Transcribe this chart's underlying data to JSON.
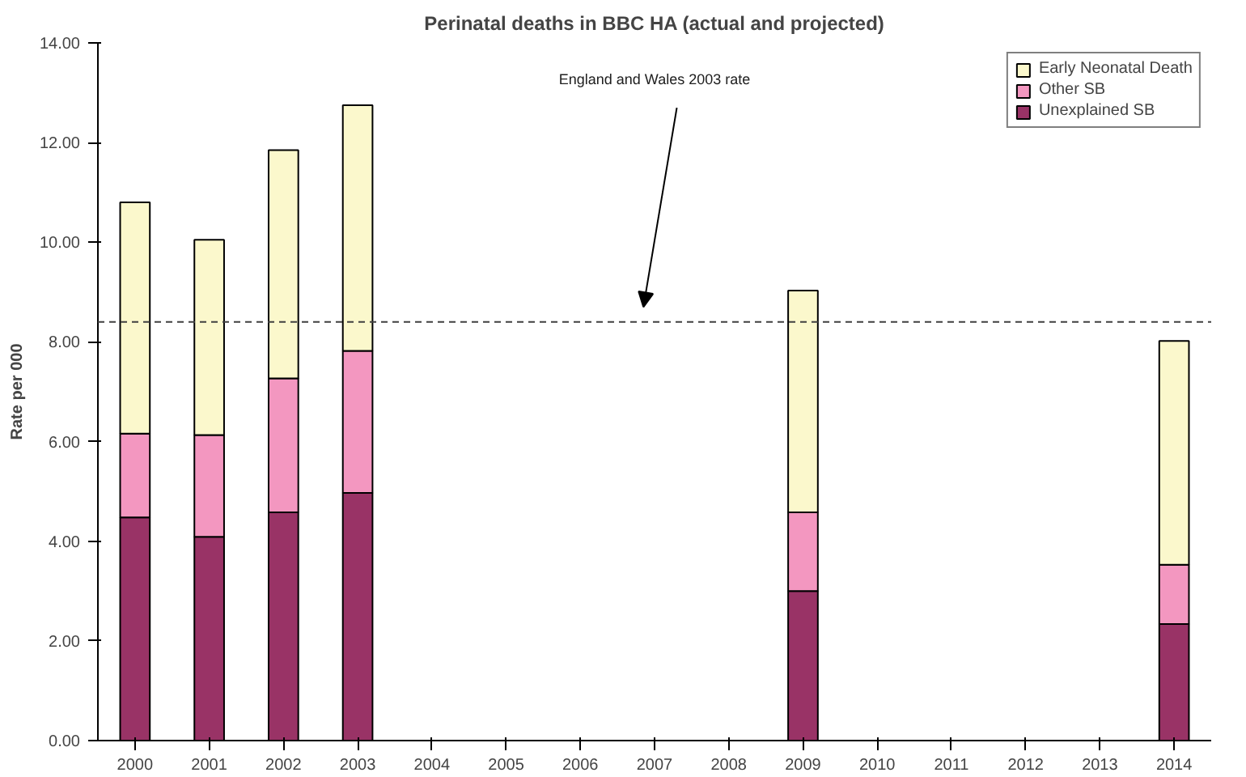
{
  "chart_data": {
    "type": "bar",
    "stacked": true,
    "title": "Perinatal deaths in BBC HA (actual and projected)",
    "ylabel": "Rate per 000",
    "categories": [
      "2000",
      "2001",
      "2002",
      "2003",
      "2004",
      "2005",
      "2006",
      "2007",
      "2008",
      "2009",
      "2010",
      "2011",
      "2012",
      "2013",
      "2014"
    ],
    "series": [
      {
        "name": "Unexplained SB",
        "color": "#993366",
        "values": [
          4.48,
          4.09,
          4.58,
          4.97,
          null,
          null,
          null,
          null,
          null,
          3.0,
          null,
          null,
          null,
          null,
          2.34
        ]
      },
      {
        "name": "Other SB",
        "color": "#f397c0",
        "values": [
          1.68,
          2.04,
          2.69,
          2.85,
          null,
          null,
          null,
          null,
          null,
          1.58,
          null,
          null,
          null,
          null,
          1.19
        ]
      },
      {
        "name": "Early Neonatal Death",
        "color": "#fbf8cc",
        "values": [
          4.64,
          3.92,
          4.58,
          4.93,
          null,
          null,
          null,
          null,
          null,
          4.45,
          null,
          null,
          null,
          null,
          4.49
        ]
      }
    ],
    "ylim": [
      0,
      14
    ],
    "yticks": [
      {
        "value": 0,
        "label": "0.00"
      },
      {
        "value": 2,
        "label": "2.00"
      },
      {
        "value": 4,
        "label": "4.00"
      },
      {
        "value": 6,
        "label": "6.00"
      },
      {
        "value": 8,
        "label": "8.00"
      },
      {
        "value": 10,
        "label": "10.00"
      },
      {
        "value": 12,
        "label": "12.00"
      },
      {
        "value": 14,
        "label": "14.00"
      }
    ],
    "ref_lines": [
      {
        "axis": "y",
        "value": 8.4,
        "color": "#404040",
        "line_style": "dashed"
      }
    ],
    "annotations": [
      "England and Wales 2003 rate"
    ],
    "grid": false,
    "legend": "top right"
  }
}
